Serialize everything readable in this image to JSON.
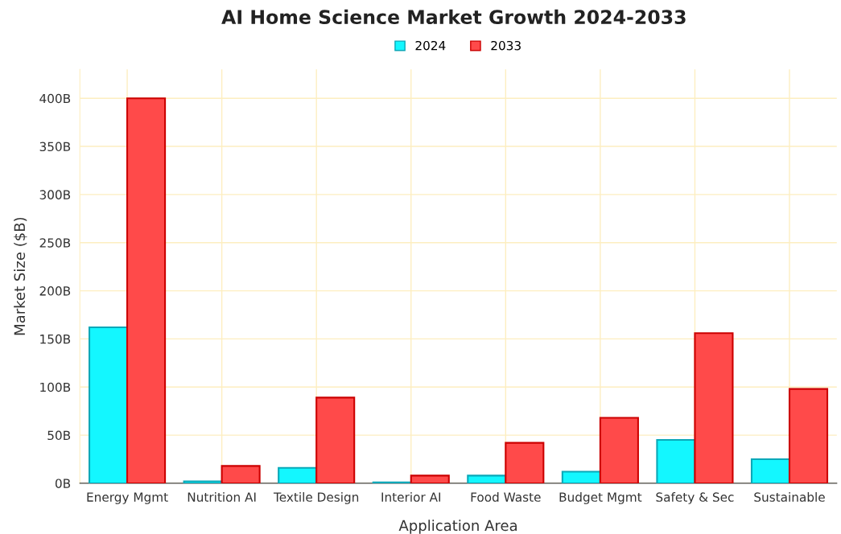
{
  "chart_data": {
    "type": "bar",
    "title": "AI Home Science Market Growth 2024-2033",
    "xlabel": "Application Area",
    "ylabel": "Market Size ($B)",
    "categories": [
      "Energy Mgmt",
      "Nutrition AI",
      "Textile Design",
      "Interior AI",
      "Food Waste",
      "Budget Mgmt",
      "Safety & Sec",
      "Sustainable"
    ],
    "series": [
      {
        "name": "2024",
        "color": "#13f7ff",
        "values": [
          162,
          2,
          16,
          1,
          8,
          12,
          45,
          25
        ]
      },
      {
        "name": "2033",
        "color": "#ff4a4a",
        "values": [
          400,
          18,
          89,
          8,
          42,
          68,
          156,
          98
        ]
      }
    ],
    "ylim": [
      0,
      430
    ],
    "yticks": [
      {
        "value": 0,
        "label": "0B"
      },
      {
        "value": 50,
        "label": "50B"
      },
      {
        "value": 100,
        "label": "100B"
      },
      {
        "value": 150,
        "label": "150B"
      },
      {
        "value": 200,
        "label": "200B"
      },
      {
        "value": 250,
        "label": "250B"
      },
      {
        "value": 300,
        "label": "300B"
      },
      {
        "value": 350,
        "label": "350B"
      },
      {
        "value": 400,
        "label": "400B"
      }
    ],
    "grid": true,
    "legend": "top"
  }
}
